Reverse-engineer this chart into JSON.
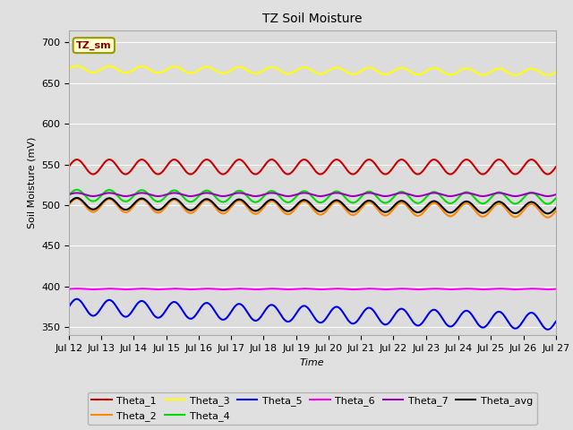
{
  "title": "TZ Soil Moisture",
  "xlabel": "Time",
  "ylabel": "Soil Moisture (mV)",
  "ylim": [
    340,
    715
  ],
  "xlim": [
    0,
    360
  ],
  "bg_color": "#e0e0e0",
  "plot_bg_color": "#dcdcdc",
  "label_box": "TZ_sm",
  "x_tick_labels": [
    "Jul 12",
    "Jul 13",
    "Jul 14",
    "Jul 15",
    "Jul 16",
    "Jul 17",
    "Jul 18",
    "Jul 19",
    "Jul 20",
    "Jul 21",
    "Jul 22",
    "Jul 23",
    "Jul 24",
    "Jul 25",
    "Jul 26",
    "Jul 27"
  ],
  "x_tick_positions": [
    0,
    24,
    48,
    72,
    96,
    120,
    144,
    168,
    192,
    216,
    240,
    264,
    288,
    312,
    336,
    360
  ],
  "lines": {
    "Theta_1": {
      "color": "#cc0000",
      "base": 547,
      "amp": 9,
      "period": 24,
      "trend": 0.0
    },
    "Theta_2": {
      "color": "#ff8800",
      "base": 500,
      "amp": 8,
      "period": 24,
      "trend": -0.02
    },
    "Theta_3": {
      "color": "#ffff00",
      "base": 667,
      "amp": 4,
      "period": 24,
      "trend": -0.01
    },
    "Theta_4": {
      "color": "#00dd00",
      "base": 512,
      "amp": 7,
      "period": 24,
      "trend": -0.01
    },
    "Theta_5": {
      "color": "#0000ee",
      "base": 375,
      "amp": 10,
      "period": 24,
      "trend": -0.05
    },
    "Theta_6": {
      "color": "#ff00ff",
      "base": 397,
      "amp": 0.5,
      "period": 24,
      "trend": 0.0
    },
    "Theta_7": {
      "color": "#9900bb",
      "base": 513,
      "amp": 2,
      "period": 24,
      "trend": 0.0
    },
    "Theta_avg": {
      "color": "#000000",
      "base": 502,
      "amp": 7,
      "period": 24,
      "trend": -0.015
    }
  },
  "yticks": [
    350,
    400,
    450,
    500,
    550,
    600,
    650,
    700
  ],
  "grid_color": "#ffffff",
  "legend_row1": [
    {
      "label": "Theta_1",
      "color": "#cc0000"
    },
    {
      "label": "Theta_2",
      "color": "#ff8800"
    },
    {
      "label": "Theta_3",
      "color": "#ffff00"
    },
    {
      "label": "Theta_4",
      "color": "#00dd00"
    },
    {
      "label": "Theta_5",
      "color": "#0000ee"
    },
    {
      "label": "Theta_6",
      "color": "#ff00ff"
    }
  ],
  "legend_row2": [
    {
      "label": "Theta_7",
      "color": "#9900bb"
    },
    {
      "label": "Theta_avg",
      "color": "#000000"
    }
  ],
  "title_fontsize": 10,
  "axis_fontsize": 8,
  "label_fontsize": 8
}
